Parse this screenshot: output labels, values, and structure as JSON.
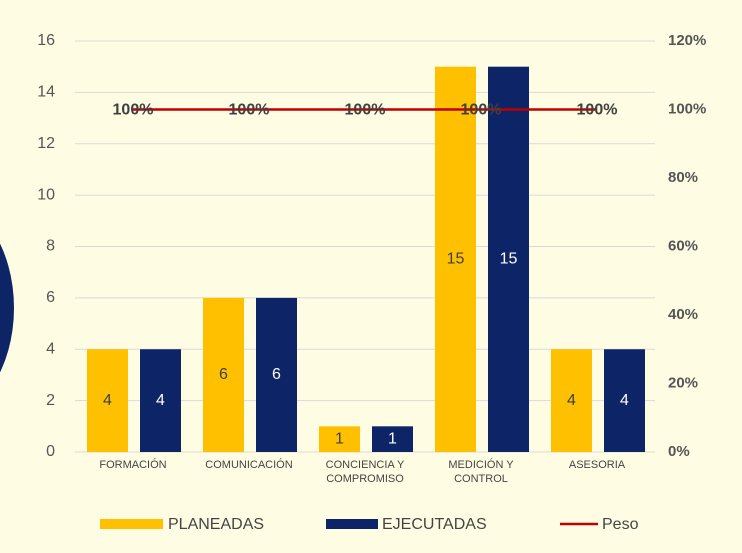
{
  "chart_data": {
    "type": "bar",
    "categories": [
      "FORMACIÓN",
      "COMUNICACIÓN",
      "CONCIENCIA Y COMPROMISO",
      "MEDICIÓN Y CONTROL",
      "ASESORIA"
    ],
    "series": [
      {
        "name": "PLANEADAS",
        "color": "#FFC000",
        "values": [
          4,
          6,
          1,
          15,
          4
        ]
      },
      {
        "name": "EJECUTADAS",
        "color": "#0D2567",
        "values": [
          4,
          6,
          1,
          15,
          4
        ]
      },
      {
        "name": "Peso",
        "color": "#C00000",
        "type": "line",
        "axis": "y2",
        "values": [
          100,
          100,
          100,
          100,
          100
        ],
        "value_labels": [
          "100%",
          "100%",
          "100%",
          "100%",
          "100%"
        ]
      }
    ],
    "ylim": [
      0,
      16
    ],
    "yticks": [
      0,
      2,
      4,
      6,
      8,
      10,
      12,
      14,
      16
    ],
    "y2lim": [
      0,
      120
    ],
    "y2ticks": [
      {
        "value": 0,
        "label": "0%"
      },
      {
        "value": 20,
        "label": "20%"
      },
      {
        "value": 40,
        "label": "40%"
      },
      {
        "value": 60,
        "label": "60%"
      },
      {
        "value": 80,
        "label": "80%"
      },
      {
        "value": 100,
        "label": "100%"
      },
      {
        "value": 120,
        "label": "120%"
      }
    ],
    "grid": true,
    "legend": "bottom"
  }
}
